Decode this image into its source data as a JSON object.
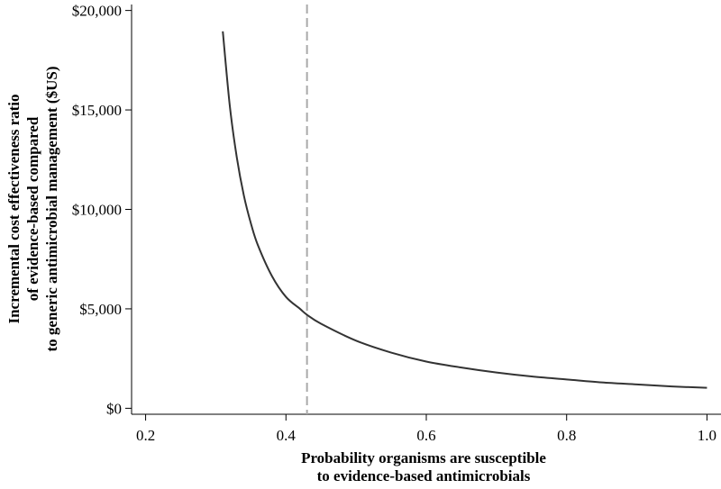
{
  "chart_data": {
    "type": "line",
    "title": "",
    "xlabel": [
      "Probability organisms are susceptible",
      "to evidence-based antimicrobials"
    ],
    "ylabel": [
      "Incremental cost effectiveness ratio",
      "of evidence-based compared",
      "to generic antimicrobial management ($US)"
    ],
    "xlim": [
      0.18,
      1.02
    ],
    "ylim": [
      -300,
      20300
    ],
    "xticks": [
      0.2,
      0.4,
      0.6,
      0.8,
      1.0
    ],
    "xtick_labels": [
      "0.2",
      "0.4",
      "0.6",
      "0.8",
      "1.0"
    ],
    "yticks": [
      0,
      5000,
      10000,
      15000,
      20000
    ],
    "ytick_labels": [
      "$0",
      "$5,000",
      "$10,000",
      "$15,000",
      "$20,000"
    ],
    "grid": false,
    "legend": "none",
    "series": [
      {
        "color": "#333333",
        "x": [
          0.31,
          0.32,
          0.33,
          0.34,
          0.35,
          0.36,
          0.38,
          0.4,
          0.42,
          0.43,
          0.45,
          0.5,
          0.55,
          0.6,
          0.65,
          0.7,
          0.75,
          0.8,
          0.85,
          0.9,
          0.95,
          1.0
        ],
        "y": [
          18950,
          15200,
          12600,
          10700,
          9300,
          8200,
          6650,
          5600,
          5000,
          4700,
          4250,
          3400,
          2800,
          2350,
          2050,
          1800,
          1600,
          1450,
          1300,
          1200,
          1100,
          1030
        ]
      }
    ],
    "reference_lines": [
      {
        "orientation": "vertical",
        "x": 0.43,
        "style": "dashed",
        "color": "#aaaaaa"
      }
    ]
  }
}
